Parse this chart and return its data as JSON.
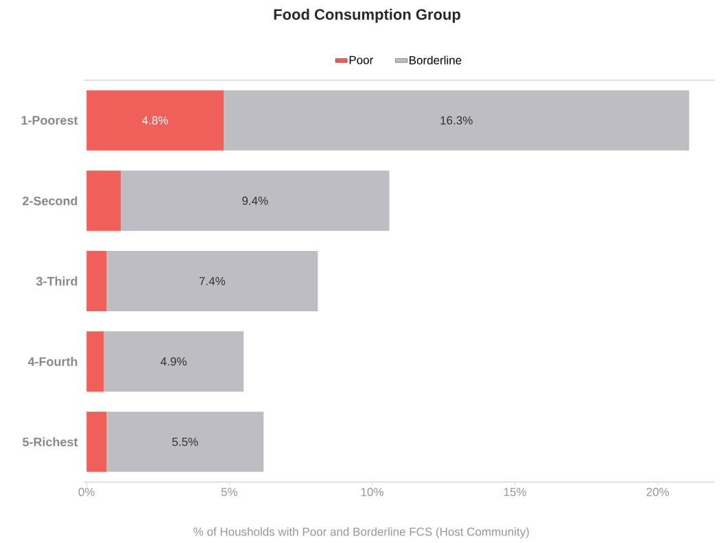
{
  "chart_data": {
    "type": "bar",
    "orientation": "horizontal",
    "stacked": true,
    "title": "Food Consumption Group",
    "xlabel": "% of Housholds with Poor and Borderline FCS (Host Community)",
    "categories": [
      "1-Poorest",
      "2-Second",
      "3-Third",
      "4-Fourth",
      "5-Richest"
    ],
    "series": [
      {
        "name": "Poor",
        "color": "#f0605a",
        "values": [
          4.8,
          1.2,
          0.7,
          0.6,
          0.7
        ],
        "value_labels": [
          "4.8%",
          null,
          null,
          null,
          null
        ]
      },
      {
        "name": "Borderline",
        "color": "#bebdc1",
        "values": [
          16.3,
          9.4,
          7.4,
          4.9,
          5.5
        ],
        "value_labels": [
          "16.3%",
          "9.4%",
          "7.4%",
          "4.9%",
          "5.5%"
        ]
      }
    ],
    "xlim": [
      -0.1,
      22
    ],
    "xticks": [
      {
        "value": 0,
        "label": "0%"
      },
      {
        "value": 5,
        "label": "5%"
      },
      {
        "value": 10,
        "label": "10%"
      },
      {
        "value": 15,
        "label": "15%"
      },
      {
        "value": 20,
        "label": "20%"
      }
    ],
    "legend": "top",
    "grid": false
  }
}
